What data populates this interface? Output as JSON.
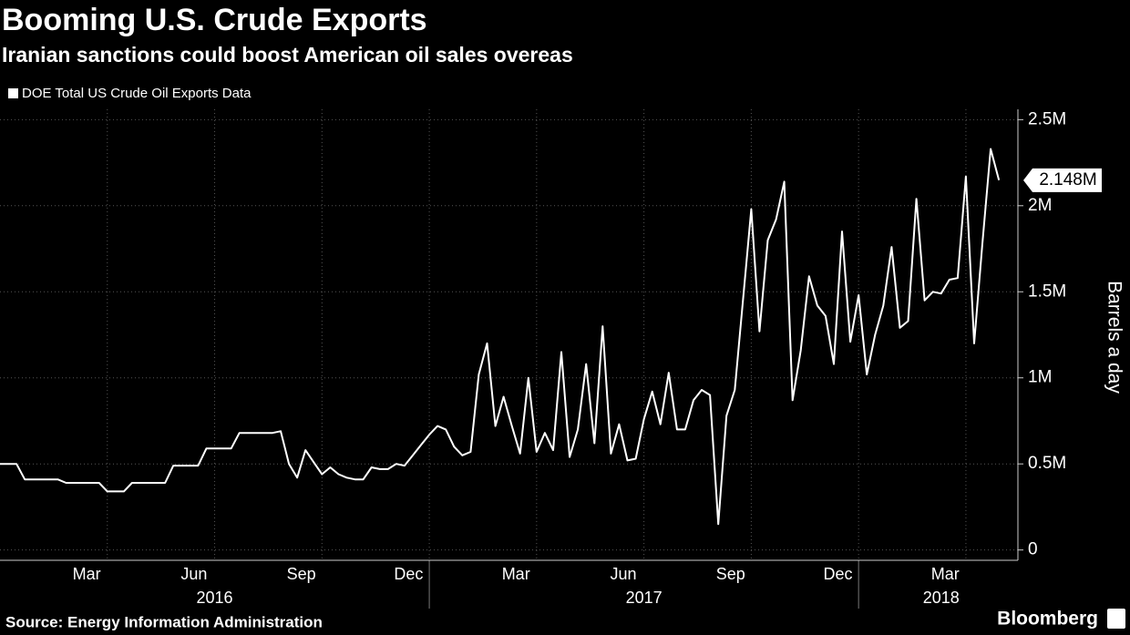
{
  "chart_data": {
    "type": "line",
    "title": "Booming U.S. Crude Exports",
    "subtitle": "Iranian sanctions could boost American oil sales overeas",
    "y_label": "Barrels a day",
    "source": "Source: Energy Information Administration",
    "brand": "Bloomberg",
    "series": [
      {
        "name": "DOE Total US Crude Oil Exports Data",
        "color": "#ffffff",
        "values": [
          0.5,
          0.5,
          0.5,
          0.41,
          0.41,
          0.41,
          0.41,
          0.41,
          0.39,
          0.39,
          0.39,
          0.39,
          0.39,
          0.34,
          0.34,
          0.34,
          0.39,
          0.39,
          0.39,
          0.39,
          0.39,
          0.49,
          0.49,
          0.49,
          0.49,
          0.59,
          0.59,
          0.59,
          0.59,
          0.68,
          0.68,
          0.68,
          0.68,
          0.68,
          0.69,
          0.5,
          0.42,
          0.58,
          0.51,
          0.44,
          0.48,
          0.44,
          0.42,
          0.41,
          0.41,
          0.48,
          0.47,
          0.47,
          0.5,
          0.49,
          0.55,
          0.61,
          0.67,
          0.72,
          0.7,
          0.6,
          0.55,
          0.57,
          1.02,
          1.2,
          0.72,
          0.89,
          0.72,
          0.56,
          1.0,
          0.57,
          0.68,
          0.58,
          1.15,
          0.54,
          0.7,
          1.08,
          0.62,
          1.3,
          0.56,
          0.73,
          0.52,
          0.53,
          0.76,
          0.92,
          0.73,
          1.03,
          0.7,
          0.7,
          0.87,
          0.93,
          0.9,
          0.15,
          0.78,
          0.93,
          1.45,
          1.98,
          1.27,
          1.8,
          1.92,
          2.14,
          0.87,
          1.16,
          1.59,
          1.42,
          1.36,
          1.08,
          1.85,
          1.21,
          1.48,
          1.02,
          1.25,
          1.42,
          1.76,
          1.29,
          1.33,
          2.04,
          1.45,
          1.5,
          1.49,
          1.57,
          1.58,
          2.17,
          1.2,
          1.78,
          2.33,
          2.148
        ],
        "value_labels": [
          null,
          null,
          null,
          null,
          null,
          null,
          null,
          null,
          null,
          null,
          null,
          null,
          null,
          null,
          null,
          null,
          null,
          null,
          null,
          null,
          null,
          null,
          null,
          null,
          null,
          null,
          null,
          null,
          null,
          null,
          null,
          null,
          null,
          null,
          null,
          null,
          null,
          null,
          null,
          null,
          null,
          null,
          null,
          null,
          null,
          null,
          null,
          null,
          null,
          null,
          null,
          null,
          null,
          null,
          null,
          null,
          null,
          null,
          null,
          null,
          null,
          null,
          null,
          null,
          null,
          null,
          null,
          null,
          null,
          null,
          null,
          null,
          null,
          null,
          null,
          null,
          null,
          null,
          null,
          null,
          null,
          null,
          null,
          null,
          null,
          null,
          null,
          null,
          null,
          null,
          null,
          null,
          null,
          null,
          null,
          null,
          null,
          null,
          null,
          null,
          null,
          null,
          null,
          null,
          null,
          null,
          null,
          null,
          null,
          null,
          null,
          null,
          null,
          null,
          null,
          null,
          null,
          null,
          null,
          null,
          null,
          "2.148M"
        ]
      }
    ],
    "xlim": [
      0,
      123.3
    ],
    "xticks": [
      {
        "value": 10.5,
        "label": "Mar"
      },
      {
        "value": 23.5,
        "label": "Jun"
      },
      {
        "value": 36.5,
        "label": "Sep"
      },
      {
        "value": 49.5,
        "label": "Dec"
      },
      {
        "value": 62.5,
        "label": "Mar"
      },
      {
        "value": 75.5,
        "label": "Jun"
      },
      {
        "value": 88.5,
        "label": "Sep"
      },
      {
        "value": 101.5,
        "label": "Dec"
      },
      {
        "value": 114.5,
        "label": "Mar"
      }
    ],
    "year_ticks": [
      {
        "value": 26,
        "label": "2016"
      },
      {
        "value": 78,
        "label": "2017"
      },
      {
        "value": 114,
        "label": "2018"
      }
    ],
    "ylim": [
      -0.06,
      2.56
    ],
    "yticks": [
      0,
      {
        "value": 0.5,
        "label": "0.5M"
      },
      {
        "value": 1,
        "label": "1M"
      },
      {
        "value": 1.5,
        "label": "1.5M"
      },
      {
        "value": 2,
        "label": "2M"
      },
      {
        "value": 2.5,
        "label": "2.5M"
      }
    ],
    "grid": true
  }
}
